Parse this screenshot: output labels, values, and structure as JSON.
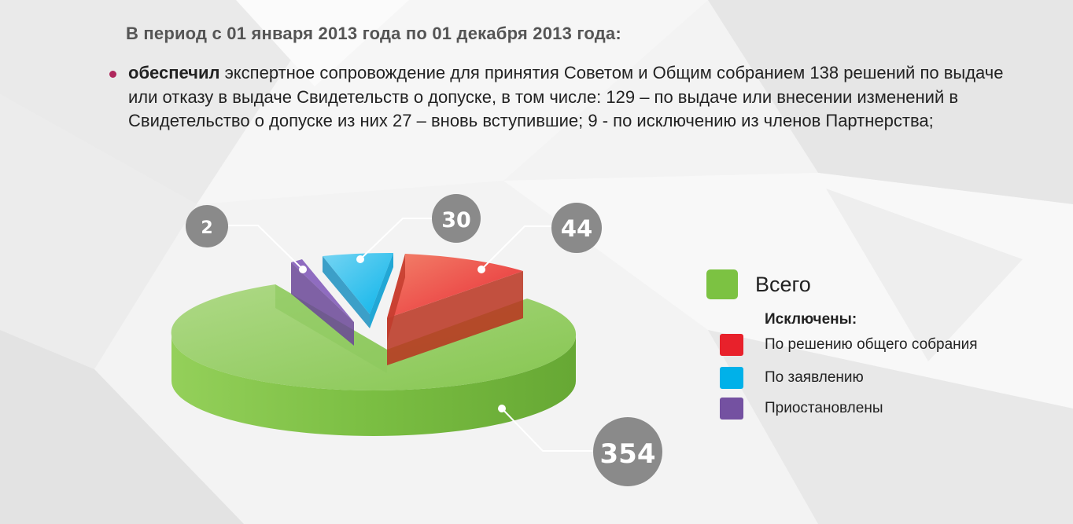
{
  "heading": "В период с 01 января 2013 года по 01 декабря 2013 года:",
  "paragraph": {
    "bold_lead": "обеспечил",
    "text": " экспертное сопровождение для принятия Советом и Общим собранием 138  решений по выдаче или отказу в выдаче Свидетельств о допуске, в том числе: 129 – по выдаче или внесении изменений в Свидетельство о допуске из них 27 – вновь вступившие; 9 - по исключению из членов Партнерства;"
  },
  "colors": {
    "accent_bullet": "#b0285d",
    "total": "#7cc242",
    "meeting": "#e8212b",
    "application": "#00b1e9",
    "suspended": "#7451a1",
    "callout": "#8a8a8a"
  },
  "chart_data": {
    "type": "pie",
    "style": "3d-exploded",
    "series": [
      {
        "name": "Всего",
        "value": 354,
        "color": "#7cc242",
        "icon": "legend-swatch"
      },
      {
        "name": "По решению общего собрания",
        "value": 44,
        "color": "#e8212b",
        "icon": "legend-swatch"
      },
      {
        "name": "По заявлению",
        "value": 30,
        "color": "#00b1e9",
        "icon": "legend-swatch"
      },
      {
        "name": "Приостановлены",
        "value": 2,
        "color": "#7451a1",
        "icon": "legend-swatch"
      }
    ],
    "data_labels": [
      "354",
      "44",
      "30",
      "2"
    ],
    "legend_title": "Исключены:",
    "legend_placement": "right",
    "grid": false
  }
}
